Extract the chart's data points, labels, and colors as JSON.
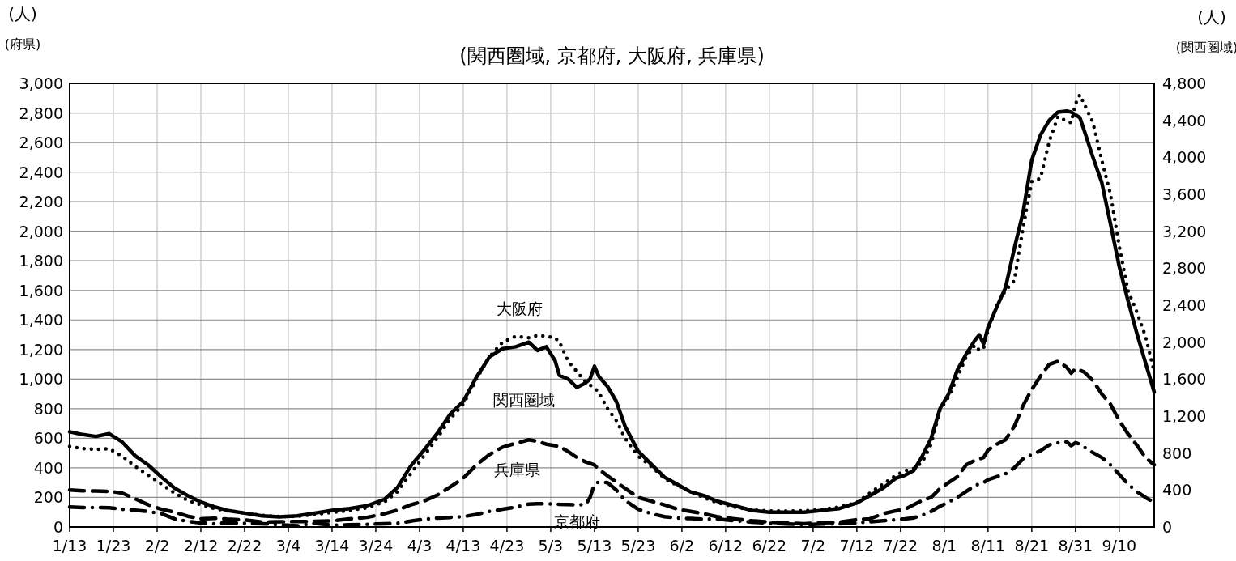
{
  "chart_data": {
    "type": "line",
    "title": "(関西圏域, 京都府, 大阪府, 兵庫県)",
    "ylabel": "(人)",
    "y2label": "(人)",
    "annotations": [
      "(府県)",
      "(関西圏域)"
    ],
    "x": [
      "--01-13",
      "--01-16",
      "--01-19",
      "--01-22",
      "--01-25",
      "--01-28",
      "--01-31",
      "--02-03",
      "--02-06",
      "--02-09",
      "--02-12",
      "--02-15",
      "--02-18",
      "--02-22",
      "--02-26",
      "--03-02",
      "--03-06",
      "--03-10",
      "--03-14",
      "--03-18",
      "--03-22",
      "--03-26",
      "--03-29",
      "--04-01",
      "--04-04",
      "--04-07",
      "--04-10",
      "--04-13",
      "--04-16",
      "--04-19",
      "--04-22",
      "--04-25",
      "--04-28",
      "--04-30",
      "--05-02",
      "--05-04",
      "--05-05",
      "--05-07",
      "--05-09",
      "--05-11",
      "--05-12",
      "--05-13",
      "--05-14",
      "--05-16",
      "--05-18",
      "--05-20",
      "--05-23",
      "--05-26",
      "--05-29",
      "--06-01",
      "--06-04",
      "--06-07",
      "--06-10",
      "--06-14",
      "--06-18",
      "--06-22",
      "--06-26",
      "--06-30",
      "--07-04",
      "--07-08",
      "--07-12",
      "--07-15",
      "--07-18",
      "--07-21",
      "--07-23",
      "--07-25",
      "--07-27",
      "--07-29",
      "--07-31",
      "--08-02",
      "--08-04",
      "--08-06",
      "--08-08",
      "--08-09",
      "--08-10",
      "--08-11",
      "--08-13",
      "--08-15",
      "--08-17",
      "--08-19",
      "--08-21",
      "--08-23",
      "--08-25",
      "--08-27",
      "--08-29",
      "--08-30",
      "--08-31",
      "--09-01",
      "--09-02",
      "--09-04",
      "--09-06",
      "--09-08",
      "--09-10",
      "--09-12",
      "--09-14",
      "--09-16",
      "--09-18"
    ],
    "series": [
      {
        "name": "関西圏域",
        "color": "#000000",
        "line_style": "solid",
        "axis": "y2",
        "values": [
          1030,
          1000,
          980,
          1010,
          920,
          770,
          670,
          540,
          420,
          340,
          270,
          220,
          180,
          150,
          120,
          110,
          120,
          150,
          180,
          200,
          230,
          300,
          430,
          660,
          830,
          1010,
          1220,
          1360,
          1620,
          1840,
          1930,
          1950,
          2000,
          1910,
          1950,
          1800,
          1640,
          1600,
          1510,
          1560,
          1600,
          1740,
          1630,
          1520,
          1360,
          1090,
          820,
          680,
          540,
          460,
          380,
          340,
          280,
          230,
          180,
          160,
          160,
          160,
          180,
          200,
          260,
          340,
          420,
          530,
          560,
          610,
          770,
          960,
          1280,
          1440,
          1700,
          1870,
          2020,
          2080,
          1980,
          2160,
          2380,
          2590,
          3010,
          3400,
          3970,
          4240,
          4400,
          4490,
          4500,
          4490,
          4460,
          4430,
          4290,
          4000,
          3730,
          3280,
          2820,
          2450,
          2100,
          1780,
          1460
        ]
      },
      {
        "name": "大阪府",
        "color": "#000000",
        "line_style": "dotted",
        "values": [
          545,
          530,
          525,
          530,
          480,
          410,
          350,
          290,
          230,
          180,
          150,
          125,
          110,
          95,
          78,
          70,
          72,
          85,
          98,
          112,
          130,
          170,
          240,
          360,
          480,
          600,
          730,
          830,
          1000,
          1150,
          1250,
          1290,
          1280,
          1295,
          1290,
          1280,
          1250,
          1120,
          1050,
          980,
          960,
          940,
          910,
          800,
          720,
          600,
          480,
          410,
          330,
          280,
          240,
          200,
          165,
          135,
          115,
          108,
          108,
          110,
          118,
          135,
          165,
          230,
          290,
          350,
          380,
          395,
          440,
          560,
          790,
          880,
          1010,
          1150,
          1230,
          1194,
          1210,
          1330,
          1500,
          1600,
          1665,
          2020,
          2336,
          2357,
          2608,
          2776,
          2744,
          2734,
          2860,
          2923,
          2860,
          2734,
          2483,
          2250,
          1900,
          1600,
          1456,
          1290,
          1050
        ]
      },
      {
        "name": "兵庫県",
        "color": "#000000",
        "line_style": "dashed",
        "values": [
          251,
          245,
          243,
          241,
          230,
          190,
          150,
          120,
          100,
          73,
          55,
          59,
          53,
          48,
          33,
          35,
          37,
          38,
          42,
          55,
          65,
          90,
          115,
          150,
          175,
          215,
          270,
          330,
          420,
          490,
          540,
          566,
          590,
          580,
          560,
          550,
          545,
          510,
          470,
          440,
          430,
          419,
          390,
          346,
          304,
          262,
          200,
          175,
          150,
          120,
          105,
          90,
          70,
          55,
          42,
          33,
          28,
          22,
          28,
          32,
          50,
          55,
          90,
          110,
          120,
          150,
          180,
          200,
          260,
          300,
          340,
          420,
          450,
          460,
          470,
          520,
          560,
          590,
          680,
          820,
          930,
          1020,
          1100,
          1121,
          1080,
          1040,
          1070,
          1060,
          1048,
          990,
          900,
          830,
          720,
          630,
          555,
          470,
          420
        ]
      },
      {
        "name": "京都府",
        "color": "#000000",
        "line_style": "dashdot",
        "values": [
          136,
          132,
          132,
          130,
          120,
          113,
          105,
          90,
          55,
          38,
          28,
          22,
          28,
          25,
          22,
          15,
          8,
          25,
          12,
          15,
          18,
          22,
          25,
          40,
          52,
          60,
          65,
          70,
          85,
          105,
          120,
          135,
          155,
          157,
          157,
          155,
          153,
          152,
          150,
          152,
          200,
          290,
          305,
          300,
          250,
          180,
          120,
          90,
          70,
          60,
          57,
          52,
          55,
          42,
          33,
          25,
          21,
          15,
          21,
          21,
          28,
          35,
          42,
          50,
          55,
          62,
          80,
          105,
          140,
          168,
          200,
          240,
          280,
          290,
          300,
          320,
          340,
          360,
          400,
          461,
          490,
          515,
          555,
          570,
          576,
          550,
          570,
          560,
          540,
          503,
          470,
          420,
          356,
          290,
          240,
          200,
          165
        ]
      }
    ],
    "xlim": [
      "--01-13",
      "--09-18"
    ],
    "xticks": [
      {
        "value": "--01-13",
        "label": "1/13"
      },
      {
        "value": "--01-23",
        "label": "1/23"
      },
      {
        "value": "--02-02",
        "label": "2/2"
      },
      {
        "value": "--02-12",
        "label": "2/12"
      },
      {
        "value": "--02-22",
        "label": "2/22"
      },
      {
        "value": "--03-04",
        "label": "3/4"
      },
      {
        "value": "--03-14",
        "label": "3/14"
      },
      {
        "value": "--03-24",
        "label": "3/24"
      },
      {
        "value": "--04-03",
        "label": "4/3"
      },
      {
        "value": "--04-13",
        "label": "4/13"
      },
      {
        "value": "--04-23",
        "label": "4/23"
      },
      {
        "value": "--05-03",
        "label": "5/3"
      },
      {
        "value": "--05-13",
        "label": "5/13"
      },
      {
        "value": "--05-23",
        "label": "5/23"
      },
      {
        "value": "--06-02",
        "label": "6/2"
      },
      {
        "value": "--06-12",
        "label": "6/12"
      },
      {
        "value": "--06-22",
        "label": "6/22"
      },
      {
        "value": "--07-02",
        "label": "7/2"
      },
      {
        "value": "--07-12",
        "label": "7/12"
      },
      {
        "value": "--07-22",
        "label": "7/22"
      },
      {
        "value": "--08-01",
        "label": "8/1"
      },
      {
        "value": "--08-11",
        "label": "8/11"
      },
      {
        "value": "--08-21",
        "label": "8/21"
      },
      {
        "value": "--08-31",
        "label": "8/31"
      },
      {
        "value": "--09-10",
        "label": "9/10"
      }
    ],
    "ylim": [
      0,
      3000
    ],
    "yticks": [
      0,
      200,
      400,
      600,
      800,
      {
        "value": 1000,
        "label": "1,000"
      },
      {
        "value": 1200,
        "label": "1,200"
      },
      {
        "value": 1400,
        "label": "1,400"
      },
      {
        "value": 1600,
        "label": "1,600"
      },
      {
        "value": 1800,
        "label": "1,800"
      },
      {
        "value": 2000,
        "label": "2,000"
      },
      {
        "value": 2200,
        "label": "2,200"
      },
      {
        "value": 2400,
        "label": "2,400"
      },
      {
        "value": 2600,
        "label": "2,600"
      },
      {
        "value": 2800,
        "label": "2,800"
      },
      {
        "value": 3000,
        "label": "3,000"
      }
    ],
    "y2lim": [
      0,
      4800
    ],
    "y2ticks": [
      0,
      400,
      800,
      {
        "value": 1200,
        "label": "1,200"
      },
      {
        "value": 1600,
        "label": "1,600"
      },
      {
        "value": 2000,
        "label": "2,000"
      },
      {
        "value": 2400,
        "label": "2,400"
      },
      {
        "value": 2800,
        "label": "2,800"
      },
      {
        "value": 3200,
        "label": "3,200"
      },
      {
        "value": 3600,
        "label": "3,600"
      },
      {
        "value": 4000,
        "label": "4,000"
      },
      {
        "value": 4400,
        "label": "4,400"
      },
      {
        "value": 4800,
        "label": "4,800"
      }
    ],
    "grid": true
  }
}
